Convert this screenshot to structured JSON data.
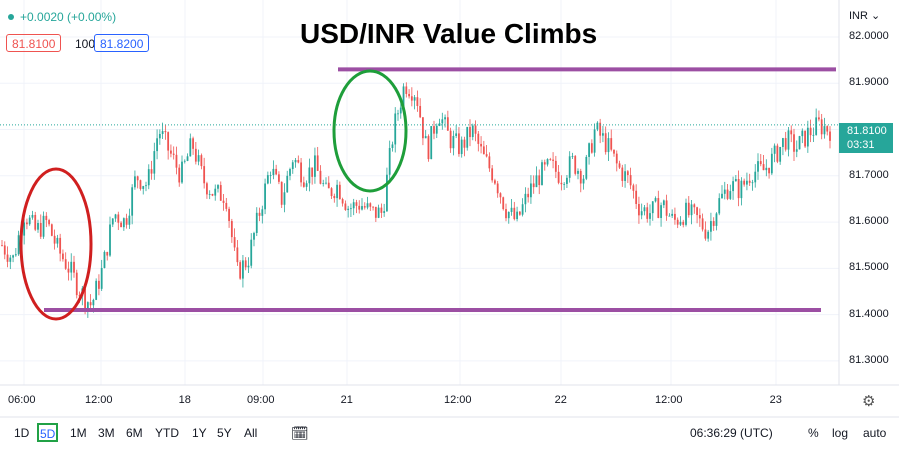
{
  "header": {
    "change_text": "+0.0020 (+0.00%)",
    "bid": "81.8100",
    "spread": "100",
    "ask": "81.8200"
  },
  "title": "USD/INR Value Climbs",
  "currency_label": "INR",
  "last_price_badge": {
    "price": "81.8100",
    "countdown": "03:31"
  },
  "time_labels": [
    "06:00",
    "12:00",
    "18",
    "09:00",
    "21",
    "12:00",
    "22",
    "12:00",
    "23"
  ],
  "bottom_bar": {
    "ranges": [
      "1D",
      "5D",
      "1M",
      "3M",
      "6M",
      "YTD",
      "1Y",
      "5Y",
      "All"
    ],
    "active_range": "5D",
    "clock": "06:36:29 (UTC)",
    "percent": "%",
    "log": "log",
    "auto": "auto"
  },
  "colors": {
    "up": "#26a69a",
    "down": "#ef5350",
    "resistance_line": "#9c4fa3",
    "circle_low": "#d01f1f",
    "circle_high": "#1e9e3a"
  },
  "chart_data": {
    "type": "line",
    "title": "USD/INR Value Climbs",
    "ylabel": "",
    "xlabel": "",
    "y_ticks": [
      82.0,
      81.9,
      81.8,
      81.7,
      81.6,
      81.5,
      81.4,
      81.3
    ],
    "ylim": [
      81.25,
      82.08
    ],
    "x_ticks": [
      "06:00",
      "12:00",
      "18",
      "09:00",
      "21",
      "12:00",
      "22",
      "12:00",
      "23"
    ],
    "series": [
      {
        "values": [
          81.55,
          81.52,
          81.62,
          81.58,
          81.6,
          81.54,
          81.5,
          81.45,
          81.42,
          81.5,
          81.62,
          81.6,
          81.7,
          81.68,
          81.8,
          81.75,
          81.7,
          81.77,
          81.69,
          81.66,
          81.66,
          81.49,
          81.52,
          81.62,
          81.72,
          81.65,
          81.74,
          81.7,
          81.72,
          81.66,
          81.68,
          81.63,
          81.64,
          81.62,
          81.62,
          81.8,
          81.9,
          81.88,
          81.75,
          81.84,
          81.78,
          81.76,
          81.8,
          81.74,
          81.7,
          81.63,
          81.6,
          81.66,
          81.7,
          81.72,
          81.7,
          81.73,
          81.7,
          81.8,
          81.77,
          81.72,
          81.69,
          81.63,
          81.62,
          81.64,
          81.6,
          81.62,
          81.61,
          81.58,
          81.64,
          81.68,
          81.67,
          81.71,
          81.71,
          81.74,
          81.78,
          81.76,
          81.79,
          81.81,
          81.8
        ]
      }
    ],
    "horizontal_lines": [
      81.93,
      81.41
    ],
    "last_price": 81.81,
    "grid": true
  }
}
